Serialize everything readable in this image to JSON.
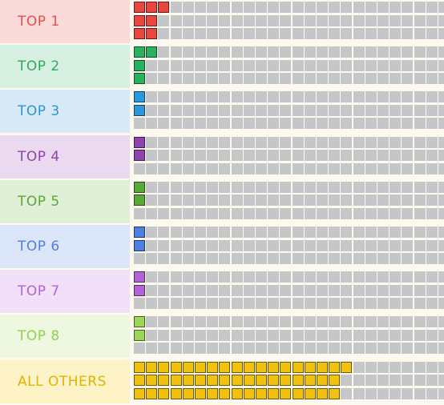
{
  "grid": {
    "cols": 26,
    "rows": 3
  },
  "empty_color": "#c4c6c7",
  "rows": [
    {
      "label": "TOP 1",
      "text_color": "#e0524a",
      "bg": "#fadbd9",
      "fill": "#e8463f",
      "count": 7
    },
    {
      "label": "TOP 2",
      "text_color": "#2eaa5c",
      "bg": "#d8f0e2",
      "fill": "#2bb15d",
      "count": 4
    },
    {
      "label": "TOP 3",
      "text_color": "#2e95d6",
      "bg": "#d8e9f7",
      "fill": "#2b98db",
      "count": 2
    },
    {
      "label": "TOP 4",
      "text_color": "#8e44ad",
      "bg": "#ead9ef",
      "fill": "#8e44ad",
      "count": 2
    },
    {
      "label": "TOP 5",
      "text_color": "#5aa83a",
      "bg": "#dff0d6",
      "fill": "#5aa83a",
      "count": 2
    },
    {
      "label": "TOP 6",
      "text_color": "#4f7fe0",
      "bg": "#dce6fa",
      "fill": "#4f7fe0",
      "count": 2
    },
    {
      "label": "TOP 7",
      "text_color": "#b064d8",
      "bg": "#f2e0f8",
      "fill": "#b064d8",
      "count": 2
    },
    {
      "label": "TOP 8",
      "text_color": "#92d050",
      "bg": "#eef7df",
      "fill": "#9bd65a",
      "count": 2
    },
    {
      "label": "ALL OTHERS",
      "text_color": "#e0b400",
      "bg": "#fdf3c6",
      "fill": "#f0c20f",
      "count": 52
    }
  ]
}
